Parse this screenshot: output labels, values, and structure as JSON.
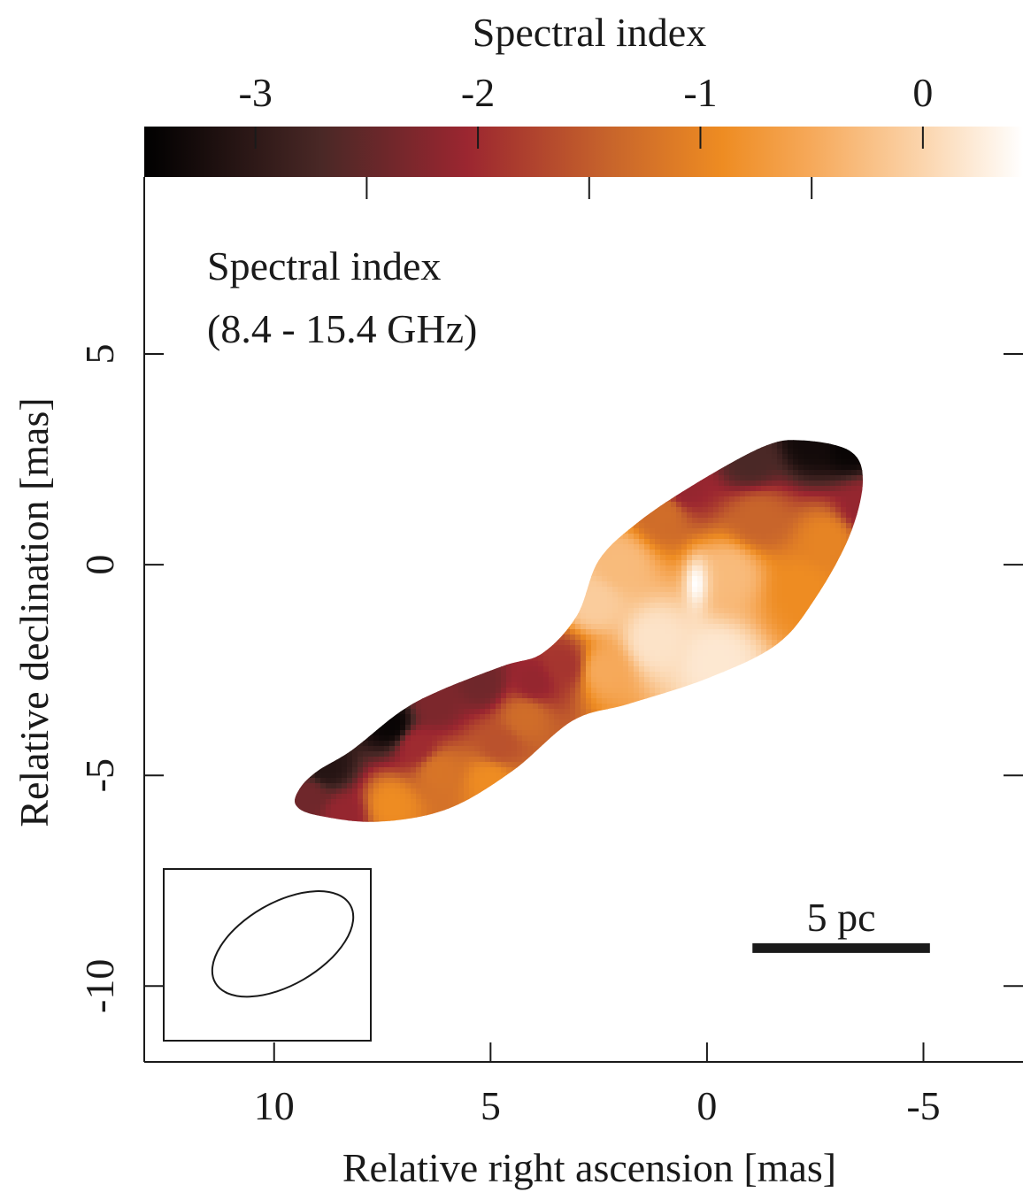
{
  "chart_data": {
    "type": "heatmap",
    "title": "",
    "colorbar": {
      "label": "Spectral index",
      "range": [
        -3.5,
        0.45
      ],
      "ticks": [
        -3,
        -2,
        -1,
        0
      ],
      "minor_ticks": [
        -3.5,
        -2.5,
        -1.5,
        -0.5
      ],
      "colormap": [
        {
          "value": -3.5,
          "color": "#000000"
        },
        {
          "value": -2.7,
          "color": "#4a2826"
        },
        {
          "value": -2.05,
          "color": "#9b2630"
        },
        {
          "value": -1.4,
          "color": "#c8652b"
        },
        {
          "value": -0.9,
          "color": "#ee8c22"
        },
        {
          "value": -0.5,
          "color": "#f6a95a"
        },
        {
          "value": 0.0,
          "color": "#fbd5ad"
        },
        {
          "value": 0.45,
          "color": "#ffffff"
        }
      ]
    },
    "annotation_lines": [
      "Spectral index",
      "(8.4 - 15.4 GHz)"
    ],
    "xlabel": "Relative right ascension [mas]",
    "ylabel": "Relative declination [mas]",
    "xlim": [
      13,
      -7.3
    ],
    "ylim": [
      -11.8,
      9.2
    ],
    "x_reversed": true,
    "xticks": [
      10,
      5,
      0,
      -5
    ],
    "yticks": [
      5,
      0,
      -5,
      -10
    ],
    "scale_bar": {
      "label": "5 pc",
      "x_start": -1.05,
      "x_end": -5.15,
      "y": -9.1
    },
    "beam": {
      "x": 9.8,
      "y": -9.0,
      "major_mas": 3.6,
      "minor_mas": 1.9,
      "angle_deg": 30
    },
    "map": {
      "outline": [
        [
          9.4,
          -5.3
        ],
        [
          9.0,
          -4.9
        ],
        [
          8.2,
          -4.4
        ],
        [
          7.1,
          -3.5
        ],
        [
          6.2,
          -3.0
        ],
        [
          4.7,
          -2.4
        ],
        [
          3.8,
          -2.1
        ],
        [
          3.0,
          -1.2
        ],
        [
          2.5,
          0.1
        ],
        [
          1.6,
          1.0
        ],
        [
          0.3,
          1.9
        ],
        [
          -1.3,
          2.8
        ],
        [
          -2.2,
          2.95
        ],
        [
          -3.3,
          2.7
        ],
        [
          -3.6,
          2.0
        ],
        [
          -3.3,
          0.7
        ],
        [
          -2.5,
          -0.8
        ],
        [
          -1.6,
          -1.9
        ],
        [
          0.0,
          -2.7
        ],
        [
          1.8,
          -3.3
        ],
        [
          3.1,
          -3.7
        ],
        [
          4.5,
          -4.9
        ],
        [
          6.0,
          -5.8
        ],
        [
          7.6,
          -6.1
        ],
        [
          9.0,
          -5.95
        ],
        [
          9.5,
          -5.7
        ]
      ],
      "peak": {
        "x": 0.25,
        "y": -0.45,
        "value": 0.45
      },
      "samples": [
        {
          "x": -2.4,
          "y": 2.95,
          "value": -3.3
        },
        {
          "x": -3.3,
          "y": 2.8,
          "value": -3.4
        },
        {
          "x": -3.6,
          "y": 1.4,
          "value": -2.1
        },
        {
          "x": -1.0,
          "y": 2.5,
          "value": -2.7
        },
        {
          "x": 0.5,
          "y": 1.8,
          "value": -2.1
        },
        {
          "x": 1.0,
          "y": 1.2,
          "value": -1.3
        },
        {
          "x": -1.2,
          "y": 1.1,
          "value": -1.4
        },
        {
          "x": -2.8,
          "y": 0.6,
          "value": -1.0
        },
        {
          "x": -2.2,
          "y": -0.6,
          "value": -0.9
        },
        {
          "x": -0.5,
          "y": -0.2,
          "value": -0.3
        },
        {
          "x": 2.0,
          "y": 0.0,
          "value": -0.3
        },
        {
          "x": 2.6,
          "y": -0.9,
          "value": -0.1
        },
        {
          "x": 1.2,
          "y": -1.8,
          "value": 0.15
        },
        {
          "x": -0.2,
          "y": -2.3,
          "value": 0.2
        },
        {
          "x": 2.4,
          "y": -2.5,
          "value": -0.5
        },
        {
          "x": 3.3,
          "y": -2.4,
          "value": -1.9
        },
        {
          "x": 4.0,
          "y": -2.8,
          "value": -2.1
        },
        {
          "x": 4.2,
          "y": -3.6,
          "value": -1.3
        },
        {
          "x": 5.2,
          "y": -2.8,
          "value": -2.4
        },
        {
          "x": 6.3,
          "y": -3.3,
          "value": -2.3
        },
        {
          "x": 7.3,
          "y": -3.8,
          "value": -3.4
        },
        {
          "x": 8.8,
          "y": -4.8,
          "value": -3.1
        },
        {
          "x": 9.2,
          "y": -5.5,
          "value": -2.4
        },
        {
          "x": 6.7,
          "y": -4.3,
          "value": -2.0
        },
        {
          "x": 6.2,
          "y": -4.9,
          "value": -1.2
        },
        {
          "x": 5.0,
          "y": -5.1,
          "value": -0.9
        },
        {
          "x": 7.3,
          "y": -5.7,
          "value": -0.9
        },
        {
          "x": 8.4,
          "y": -5.95,
          "value": -2.1
        },
        {
          "x": 4.8,
          "y": -4.3,
          "value": -1.6
        }
      ]
    }
  }
}
